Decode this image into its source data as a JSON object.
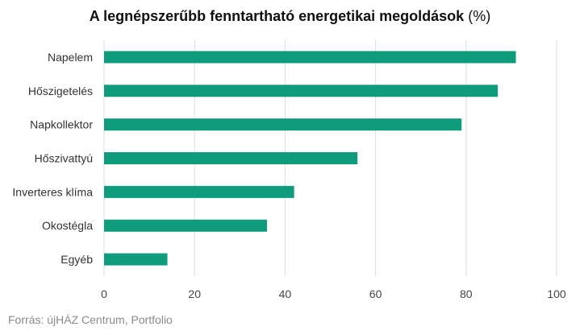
{
  "chart_data": {
    "type": "bar",
    "orientation": "horizontal",
    "title": "A legnépszerűbb fenntartható energetikai megoldások",
    "title_unit": "(%)",
    "categories": [
      "Napelem",
      "Hőszigetelés",
      "Napkollektor",
      "Hőszivattyú",
      "Inverteres klíma",
      "Okostégla",
      "Egyéb"
    ],
    "values": [
      91,
      87,
      79,
      56,
      42,
      36,
      14
    ],
    "xlim": [
      0,
      100
    ],
    "xticks": [
      0,
      20,
      40,
      60,
      80,
      100
    ],
    "grid": true,
    "bar_color": "#0f9c7c"
  },
  "footer": {
    "source": "Forrás: újHÁZ Centrum, Portfolio"
  }
}
